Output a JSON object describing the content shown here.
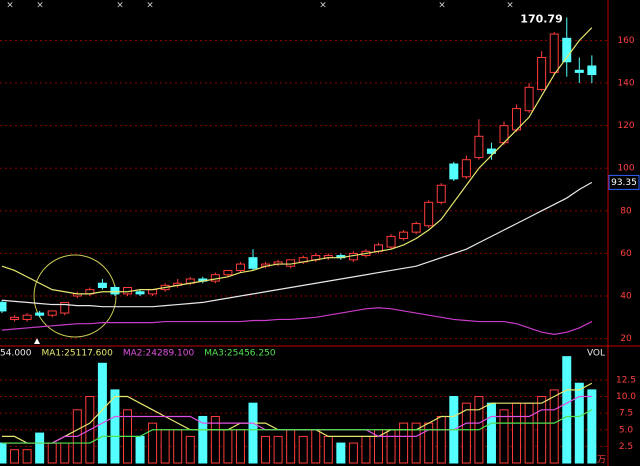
{
  "chart_data": {
    "type": "candlestick",
    "event_markers": [
      "×",
      "×",
      "×",
      "×",
      "×",
      "×",
      "×"
    ],
    "ylim": [
      17,
      179
    ],
    "yticks": [
      20,
      40,
      60,
      80,
      100,
      120,
      140,
      160
    ],
    "grid": true,
    "up_color": "#ff3c3c",
    "down_color": "#54ffff",
    "open": [
      37,
      29,
      29,
      32,
      31,
      32,
      40,
      41,
      46,
      44,
      41,
      42,
      41,
      43,
      45,
      46,
      48,
      47,
      50,
      52,
      58,
      54,
      55,
      54,
      56,
      57,
      58,
      59,
      57,
      59,
      61,
      63,
      67,
      70,
      73,
      84,
      102,
      96,
      105,
      109,
      112,
      118,
      127,
      137,
      145,
      161,
      146,
      148
    ],
    "close": [
      33,
      30,
      31,
      31,
      33,
      37,
      41,
      43,
      44,
      41,
      44,
      41,
      43,
      45,
      46,
      48,
      47,
      50,
      52,
      55,
      53,
      55,
      56,
      57,
      58,
      59,
      59,
      58,
      60,
      61,
      64,
      68,
      70,
      74,
      84,
      92,
      95,
      104,
      115,
      107,
      120,
      128,
      138,
      152,
      163,
      150,
      145,
      144
    ],
    "high": [
      38,
      31,
      32,
      33,
      33,
      37,
      42,
      44,
      48,
      45,
      44,
      43,
      43,
      46,
      48,
      49,
      49,
      51,
      52,
      56,
      62,
      56,
      57,
      57,
      59,
      60,
      60,
      60,
      61,
      62,
      65,
      69,
      71,
      75,
      85,
      93,
      103,
      106,
      123,
      112,
      122,
      130,
      140,
      155,
      164,
      170.79,
      152,
      153
    ],
    "low": [
      32,
      28,
      28,
      30,
      30,
      31,
      39,
      40,
      43,
      40,
      40,
      40,
      40,
      42,
      44,
      45,
      46,
      46,
      49,
      51,
      52,
      53,
      54,
      53,
      55,
      56,
      57,
      57,
      56,
      58,
      60,
      62,
      66,
      69,
      72,
      83,
      94,
      95,
      104,
      104,
      111,
      117,
      126,
      136,
      144,
      143,
      140,
      140
    ],
    "lines": [
      {
        "color": "#e6e66e",
        "values": [
          54,
          52,
          49,
          46,
          43,
          42,
          41,
          41,
          42,
          42,
          42,
          43,
          43,
          44,
          45,
          46,
          47,
          48,
          49,
          51,
          52,
          54,
          55,
          55,
          56,
          57,
          58,
          58,
          59,
          60,
          61,
          62,
          64,
          67,
          71,
          76,
          84,
          92,
          100,
          106,
          112,
          118,
          124,
          134,
          144,
          152,
          160,
          166
        ]
      },
      {
        "color": "#e8e8e8",
        "values": [
          38,
          37.5,
          37,
          36.5,
          36,
          36,
          35.5,
          35.5,
          35,
          35,
          35,
          35,
          35,
          35.5,
          36,
          36.5,
          37,
          38,
          39,
          40,
          41,
          42,
          43,
          44,
          45,
          46,
          47,
          48,
          49,
          50,
          51,
          52,
          53,
          54,
          56,
          58,
          60,
          62,
          65,
          68,
          71,
          74,
          77,
          80,
          83,
          86,
          90,
          93.35
        ]
      },
      {
        "color": "#c83cc8",
        "values": [
          24,
          24.5,
          25,
          25.5,
          26,
          26.5,
          27,
          27,
          27.5,
          27.5,
          27.5,
          27.5,
          27.5,
          28,
          28,
          28,
          28,
          28,
          28,
          28,
          28.5,
          28.5,
          29,
          29,
          29.5,
          30,
          31,
          32,
          33,
          34,
          34.5,
          34,
          33,
          32,
          31,
          30,
          29,
          28.5,
          28,
          28,
          28,
          27,
          25,
          23,
          22,
          23,
          25,
          28
        ]
      }
    ],
    "volume": {
      "title": "VOL",
      "unit": "万",
      "ylim": [
        0,
        17
      ],
      "yticks": [
        2.5,
        {
          "value": 5,
          "label": "5.0"
        },
        7.5,
        {
          "value": 10,
          "label": "10.0"
        },
        12.5
      ],
      "header": [
        {
          "text": "54.000",
          "color": "#e8e8e8"
        },
        {
          "text": "MA1:25117.600",
          "color": "#e6e66e"
        },
        {
          "text": "MA2:24289.100",
          "color": "#e050e0"
        },
        {
          "text": "MA3:25456.250",
          "color": "#50e050"
        }
      ],
      "values": [
        3,
        2,
        2,
        4.5,
        3,
        3,
        8,
        10,
        15,
        11,
        8,
        4,
        6,
        5,
        5,
        4,
        7,
        7,
        5,
        5,
        9,
        4,
        4,
        5,
        4,
        5,
        4,
        3,
        3,
        4,
        5,
        5,
        6,
        6,
        6,
        7,
        10,
        9,
        10,
        9,
        8,
        9,
        9,
        10,
        11,
        16,
        12,
        11
      ],
      "lines": [
        {
          "color": "#e6e66e",
          "values": [
            4,
            4,
            3,
            3,
            3,
            4,
            5,
            6,
            8,
            10,
            10,
            9,
            8,
            7,
            6,
            5,
            5,
            5,
            5,
            6,
            6,
            6,
            5,
            5,
            5,
            5,
            4,
            4,
            4,
            4,
            4,
            5,
            5,
            5,
            6,
            7,
            7,
            8,
            8,
            9,
            9,
            9,
            9,
            9,
            10,
            11,
            11,
            12
          ]
        },
        {
          "color": "#e050e0",
          "values": [
            3,
            3,
            3,
            3,
            3,
            4,
            4,
            5,
            6,
            7,
            7,
            7,
            7,
            7,
            7,
            7,
            6,
            6,
            6,
            6,
            6,
            5,
            5,
            5,
            5,
            5,
            5,
            5,
            5,
            5,
            4,
            4,
            4,
            4,
            5,
            5,
            5,
            6,
            6,
            7,
            7,
            7,
            7,
            8,
            8,
            9,
            10,
            10
          ]
        },
        {
          "color": "#50e050",
          "values": [
            3,
            3,
            3,
            3,
            3,
            3,
            3,
            3,
            4,
            4,
            4,
            4,
            5,
            5,
            5,
            5,
            5,
            5,
            5,
            5,
            5,
            5,
            5,
            5,
            5,
            5,
            5,
            5,
            5,
            5,
            5,
            5,
            5,
            5,
            5,
            5,
            5,
            5,
            5,
            6,
            6,
            6,
            6,
            6,
            6,
            7,
            7,
            8
          ]
        }
      ]
    }
  }
}
